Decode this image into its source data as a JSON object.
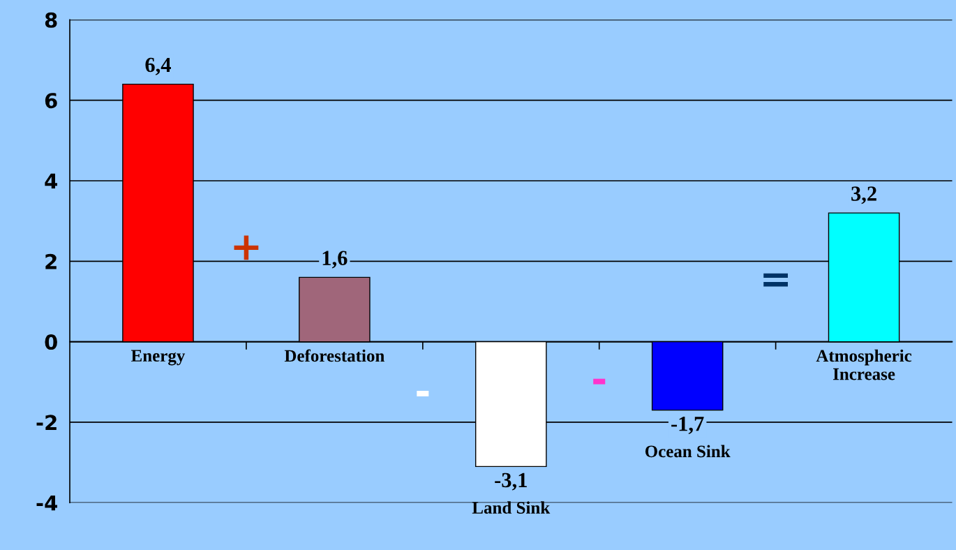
{
  "chart_data": {
    "type": "bar",
    "categories": [
      "Energy",
      "Deforestation",
      "Land Sink",
      "Ocean Sink",
      "Atmospheric Increase"
    ],
    "values": [
      6.4,
      1.6,
      -3.1,
      -1.7,
      3.2
    ],
    "colors": [
      "#ff0000",
      "#a0667a",
      "#ffffff",
      "#0000ff",
      "#00ffff"
    ],
    "value_labels": [
      "6,4",
      "1,6",
      "-3,1",
      "-1,7",
      "3,2"
    ],
    "annotations": [
      "+",
      "-",
      "-",
      "="
    ],
    "ylim": [
      -4,
      8
    ],
    "yticks": [
      -4,
      -2,
      0,
      2,
      4,
      6,
      8
    ],
    "grid": "y",
    "legend": false
  }
}
